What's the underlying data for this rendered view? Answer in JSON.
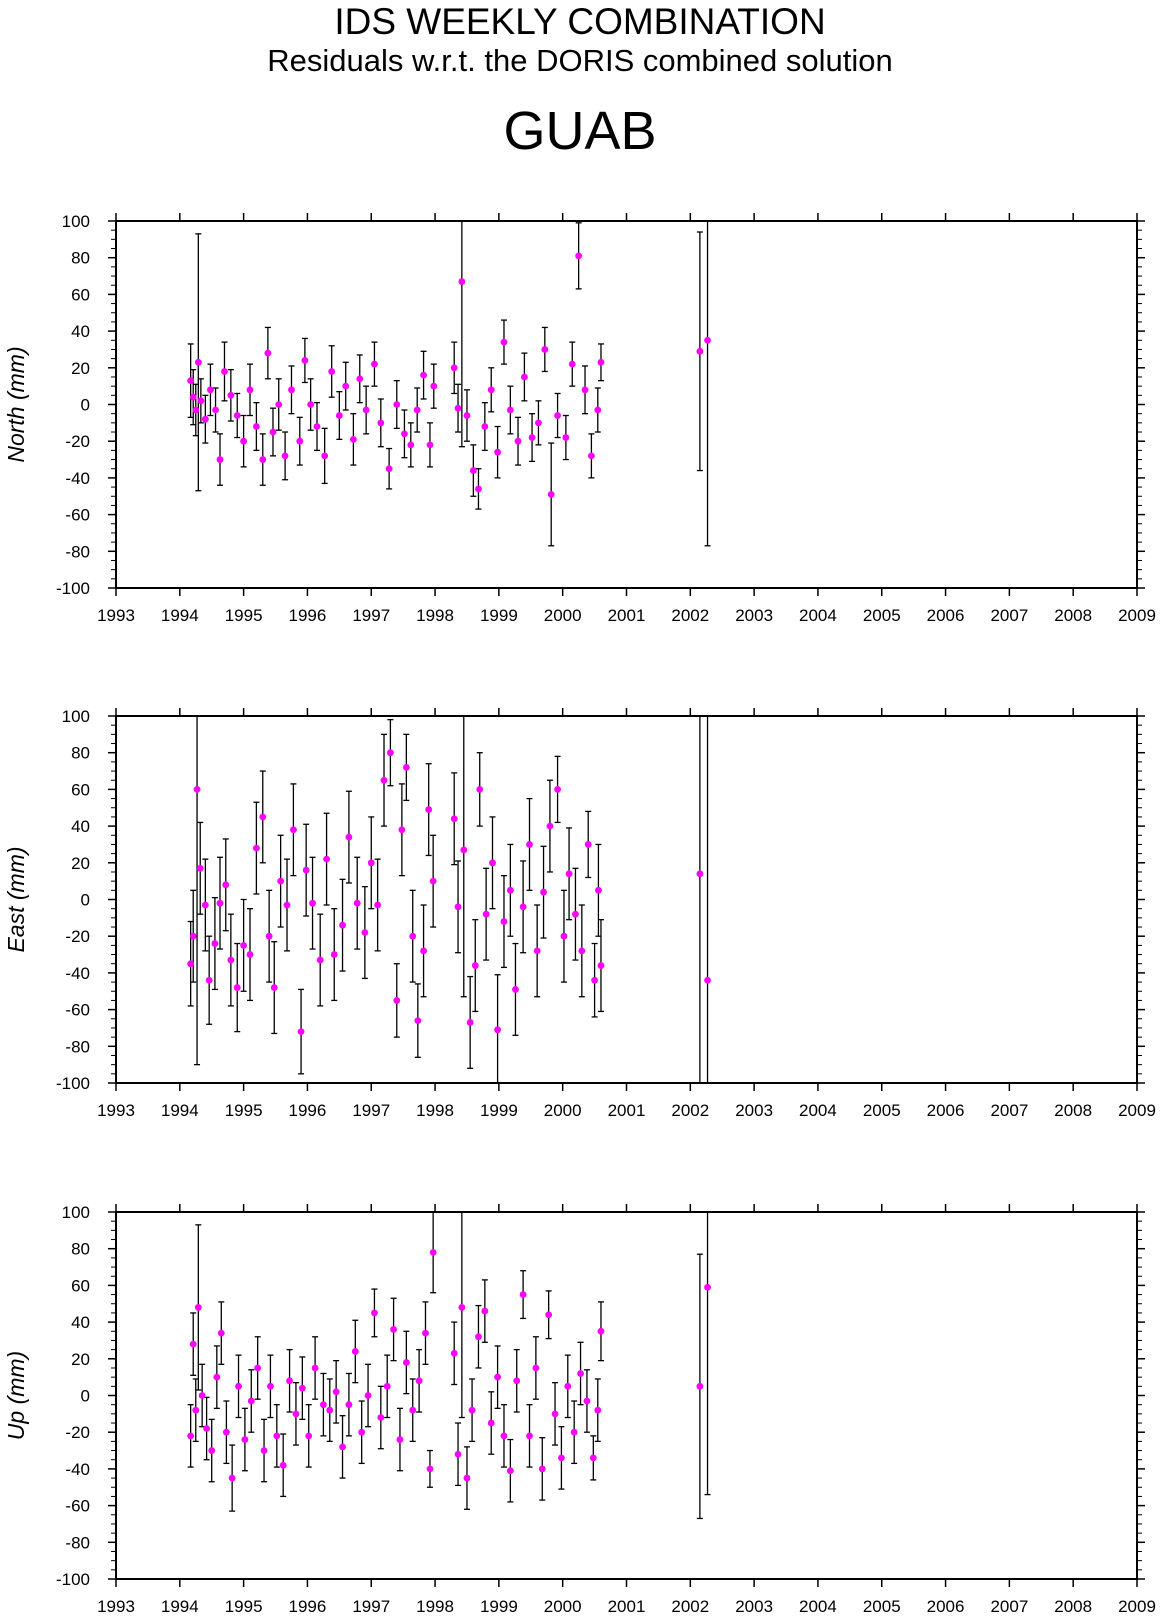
{
  "header": {
    "title": "IDS WEEKLY COMBINATION",
    "subtitle": "Residuals w.r.t. the DORIS combined solution",
    "station": "GUAB"
  },
  "colors": {
    "point": "#ff00ff",
    "errorbar": "#000000",
    "axis": "#000000"
  },
  "chart_data": [
    {
      "type": "scatter",
      "ylabel": "North (mm)",
      "xlim": [
        1993,
        2009
      ],
      "ylim": [
        -100,
        100
      ],
      "x_ticks": [
        "1993",
        "1994",
        "1995",
        "1996",
        "1997",
        "1998",
        "1999",
        "2000",
        "2001",
        "2002",
        "2003",
        "2004",
        "2005",
        "2006",
        "2007",
        "2008",
        "2009"
      ],
      "y_ticks": [
        "100",
        "80",
        "60",
        "40",
        "20",
        "0",
        "-20",
        "-40",
        "-60",
        "-80",
        "-100"
      ],
      "points": [
        {
          "x": 1994.17,
          "y": 13,
          "err": 20
        },
        {
          "x": 1994.21,
          "y": 4,
          "err": 15
        },
        {
          "x": 1994.25,
          "y": -3,
          "err": 14
        },
        {
          "x": 1994.29,
          "y": 23,
          "err": 70
        },
        {
          "x": 1994.33,
          "y": 2,
          "err": 12
        },
        {
          "x": 1994.4,
          "y": -8,
          "err": 13
        },
        {
          "x": 1994.48,
          "y": 8,
          "err": 14
        },
        {
          "x": 1994.56,
          "y": -3,
          "err": 12
        },
        {
          "x": 1994.63,
          "y": -30,
          "err": 14
        },
        {
          "x": 1994.7,
          "y": 18,
          "err": 16
        },
        {
          "x": 1994.8,
          "y": 5,
          "err": 14
        },
        {
          "x": 1994.9,
          "y": -6,
          "err": 12
        },
        {
          "x": 1995.0,
          "y": -20,
          "err": 14
        },
        {
          "x": 1995.1,
          "y": 8,
          "err": 14
        },
        {
          "x": 1995.2,
          "y": -12,
          "err": 13
        },
        {
          "x": 1995.3,
          "y": -30,
          "err": 14
        },
        {
          "x": 1995.38,
          "y": 28,
          "err": 14
        },
        {
          "x": 1995.46,
          "y": -15,
          "err": 13
        },
        {
          "x": 1995.55,
          "y": 0,
          "err": 14
        },
        {
          "x": 1995.65,
          "y": -28,
          "err": 13
        },
        {
          "x": 1995.75,
          "y": 8,
          "err": 13
        },
        {
          "x": 1995.88,
          "y": -20,
          "err": 13
        },
        {
          "x": 1995.96,
          "y": 24,
          "err": 12
        },
        {
          "x": 1996.05,
          "y": 0,
          "err": 14
        },
        {
          "x": 1996.15,
          "y": -12,
          "err": 13
        },
        {
          "x": 1996.27,
          "y": -28,
          "err": 15
        },
        {
          "x": 1996.38,
          "y": 18,
          "err": 14
        },
        {
          "x": 1996.5,
          "y": -6,
          "err": 13
        },
        {
          "x": 1996.6,
          "y": 10,
          "err": 13
        },
        {
          "x": 1996.72,
          "y": -19,
          "err": 14
        },
        {
          "x": 1996.82,
          "y": 14,
          "err": 13
        },
        {
          "x": 1996.92,
          "y": -3,
          "err": 13
        },
        {
          "x": 1997.05,
          "y": 22,
          "err": 12
        },
        {
          "x": 1997.15,
          "y": -10,
          "err": 13
        },
        {
          "x": 1997.28,
          "y": -35,
          "err": 11
        },
        {
          "x": 1997.4,
          "y": 0,
          "err": 13
        },
        {
          "x": 1997.52,
          "y": -16,
          "err": 13
        },
        {
          "x": 1997.62,
          "y": -22,
          "err": 12
        },
        {
          "x": 1997.72,
          "y": -3,
          "err": 12
        },
        {
          "x": 1997.82,
          "y": 16,
          "err": 13
        },
        {
          "x": 1997.92,
          "y": -22,
          "err": 12
        },
        {
          "x": 1997.98,
          "y": 10,
          "err": 12
        },
        {
          "x": 1998.3,
          "y": 20,
          "err": 14
        },
        {
          "x": 1998.36,
          "y": -2,
          "err": 13
        },
        {
          "x": 1998.42,
          "y": 67,
          "err": 90
        },
        {
          "x": 1998.5,
          "y": -6,
          "err": 14
        },
        {
          "x": 1998.6,
          "y": -36,
          "err": 14
        },
        {
          "x": 1998.68,
          "y": -46,
          "err": 11
        },
        {
          "x": 1998.78,
          "y": -12,
          "err": 13
        },
        {
          "x": 1998.88,
          "y": 8,
          "err": 12
        },
        {
          "x": 1998.98,
          "y": -26,
          "err": 14
        },
        {
          "x": 1999.08,
          "y": 34,
          "err": 12
        },
        {
          "x": 1999.18,
          "y": -3,
          "err": 13
        },
        {
          "x": 1999.3,
          "y": -20,
          "err": 13
        },
        {
          "x": 1999.4,
          "y": 15,
          "err": 13
        },
        {
          "x": 1999.52,
          "y": -18,
          "err": 13
        },
        {
          "x": 1999.62,
          "y": -10,
          "err": 12
        },
        {
          "x": 1999.72,
          "y": 30,
          "err": 12
        },
        {
          "x": 1999.82,
          "y": -49,
          "err": 28
        },
        {
          "x": 1999.92,
          "y": -6,
          "err": 12
        },
        {
          "x": 2000.05,
          "y": -18,
          "err": 12
        },
        {
          "x": 2000.15,
          "y": 22,
          "err": 12
        },
        {
          "x": 2000.25,
          "y": 81,
          "err": 18
        },
        {
          "x": 2000.35,
          "y": 8,
          "err": 13
        },
        {
          "x": 2000.45,
          "y": -28,
          "err": 12
        },
        {
          "x": 2000.55,
          "y": -3,
          "err": 12
        },
        {
          "x": 2000.6,
          "y": 23,
          "err": 10
        },
        {
          "x": 2002.15,
          "y": 29,
          "err": 65
        },
        {
          "x": 2002.27,
          "y": 35,
          "err": 112
        }
      ]
    },
    {
      "type": "scatter",
      "ylabel": "East (mm)",
      "xlim": [
        1993,
        2009
      ],
      "ylim": [
        -100,
        100
      ],
      "x_ticks": [
        "1993",
        "1994",
        "1995",
        "1996",
        "1997",
        "1998",
        "1999",
        "2000",
        "2001",
        "2002",
        "2003",
        "2004",
        "2005",
        "2006",
        "2007",
        "2008",
        "2009"
      ],
      "y_ticks": [
        "100",
        "80",
        "60",
        "40",
        "20",
        "0",
        "-20",
        "-40",
        "-60",
        "-80",
        "-100"
      ],
      "points": [
        {
          "x": 1994.17,
          "y": -35,
          "err": 23
        },
        {
          "x": 1994.21,
          "y": -20,
          "err": 25
        },
        {
          "x": 1994.27,
          "y": 60,
          "err": 150
        },
        {
          "x": 1994.32,
          "y": 17,
          "err": 25
        },
        {
          "x": 1994.4,
          "y": -3,
          "err": 25
        },
        {
          "x": 1994.46,
          "y": -44,
          "err": 24
        },
        {
          "x": 1994.55,
          "y": -24,
          "err": 25
        },
        {
          "x": 1994.63,
          "y": -2,
          "err": 25
        },
        {
          "x": 1994.72,
          "y": 8,
          "err": 25
        },
        {
          "x": 1994.8,
          "y": -33,
          "err": 25
        },
        {
          "x": 1994.9,
          "y": -48,
          "err": 24
        },
        {
          "x": 1995.0,
          "y": -25,
          "err": 25
        },
        {
          "x": 1995.1,
          "y": -30,
          "err": 25
        },
        {
          "x": 1995.2,
          "y": 28,
          "err": 25
        },
        {
          "x": 1995.3,
          "y": 45,
          "err": 25
        },
        {
          "x": 1995.4,
          "y": -20,
          "err": 25
        },
        {
          "x": 1995.48,
          "y": -48,
          "err": 25
        },
        {
          "x": 1995.58,
          "y": 10,
          "err": 25
        },
        {
          "x": 1995.68,
          "y": -3,
          "err": 25
        },
        {
          "x": 1995.78,
          "y": 38,
          "err": 25
        },
        {
          "x": 1995.9,
          "y": -72,
          "err": 23
        },
        {
          "x": 1995.98,
          "y": 16,
          "err": 25
        },
        {
          "x": 1996.08,
          "y": -2,
          "err": 25
        },
        {
          "x": 1996.2,
          "y": -33,
          "err": 25
        },
        {
          "x": 1996.3,
          "y": 22,
          "err": 25
        },
        {
          "x": 1996.42,
          "y": -30,
          "err": 25
        },
        {
          "x": 1996.55,
          "y": -14,
          "err": 25
        },
        {
          "x": 1996.65,
          "y": 34,
          "err": 25
        },
        {
          "x": 1996.78,
          "y": -2,
          "err": 25
        },
        {
          "x": 1996.9,
          "y": -18,
          "err": 25
        },
        {
          "x": 1997.0,
          "y": 20,
          "err": 25
        },
        {
          "x": 1997.1,
          "y": -3,
          "err": 25
        },
        {
          "x": 1997.2,
          "y": 65,
          "err": 25
        },
        {
          "x": 1997.3,
          "y": 80,
          "err": 18
        },
        {
          "x": 1997.4,
          "y": -55,
          "err": 20
        },
        {
          "x": 1997.48,
          "y": 38,
          "err": 25
        },
        {
          "x": 1997.55,
          "y": 72,
          "err": 18
        },
        {
          "x": 1997.65,
          "y": -20,
          "err": 25
        },
        {
          "x": 1997.73,
          "y": -66,
          "err": 20
        },
        {
          "x": 1997.82,
          "y": -28,
          "err": 25
        },
        {
          "x": 1997.9,
          "y": 49,
          "err": 25
        },
        {
          "x": 1997.97,
          "y": 10,
          "err": 25
        },
        {
          "x": 1998.3,
          "y": 44,
          "err": 25
        },
        {
          "x": 1998.36,
          "y": -4,
          "err": 25
        },
        {
          "x": 1998.45,
          "y": 27,
          "err": 80
        },
        {
          "x": 1998.55,
          "y": -67,
          "err": 25
        },
        {
          "x": 1998.63,
          "y": -36,
          "err": 25
        },
        {
          "x": 1998.7,
          "y": 60,
          "err": 20
        },
        {
          "x": 1998.8,
          "y": -8,
          "err": 25
        },
        {
          "x": 1998.9,
          "y": 20,
          "err": 25
        },
        {
          "x": 1998.98,
          "y": -71,
          "err": 30
        },
        {
          "x": 1999.08,
          "y": -12,
          "err": 25
        },
        {
          "x": 1999.18,
          "y": 5,
          "err": 25
        },
        {
          "x": 1999.26,
          "y": -49,
          "err": 25
        },
        {
          "x": 1999.38,
          "y": -4,
          "err": 25
        },
        {
          "x": 1999.48,
          "y": 30,
          "err": 25
        },
        {
          "x": 1999.6,
          "y": -28,
          "err": 25
        },
        {
          "x": 1999.7,
          "y": 4,
          "err": 25
        },
        {
          "x": 1999.8,
          "y": 40,
          "err": 25
        },
        {
          "x": 1999.92,
          "y": 60,
          "err": 18
        },
        {
          "x": 2000.02,
          "y": -20,
          "err": 25
        },
        {
          "x": 2000.1,
          "y": 14,
          "err": 25
        },
        {
          "x": 2000.2,
          "y": -8,
          "err": 25
        },
        {
          "x": 2000.3,
          "y": -28,
          "err": 25
        },
        {
          "x": 2000.4,
          "y": 30,
          "err": 18
        },
        {
          "x": 2000.5,
          "y": -44,
          "err": 20
        },
        {
          "x": 2000.56,
          "y": 5,
          "err": 25
        },
        {
          "x": 2000.6,
          "y": -36,
          "err": 25
        },
        {
          "x": 2002.15,
          "y": 14,
          "err": 150
        },
        {
          "x": 2002.27,
          "y": -44,
          "err": 150
        }
      ]
    },
    {
      "type": "scatter",
      "ylabel": "Up (mm)",
      "xlim": [
        1993,
        2009
      ],
      "ylim": [
        -100,
        100
      ],
      "x_ticks": [
        "1993",
        "1994",
        "1995",
        "1996",
        "1997",
        "1998",
        "1999",
        "2000",
        "2001",
        "2002",
        "2003",
        "2004",
        "2005",
        "2006",
        "2007",
        "2008",
        "2009"
      ],
      "y_ticks": [
        "100",
        "80",
        "60",
        "40",
        "20",
        "0",
        "-20",
        "-40",
        "-60",
        "-80",
        "-100"
      ],
      "points": [
        {
          "x": 1994.17,
          "y": -22,
          "err": 17
        },
        {
          "x": 1994.21,
          "y": 28,
          "err": 17
        },
        {
          "x": 1994.25,
          "y": -8,
          "err": 17
        },
        {
          "x": 1994.29,
          "y": 48,
          "err": 45
        },
        {
          "x": 1994.35,
          "y": 0,
          "err": 17
        },
        {
          "x": 1994.42,
          "y": -18,
          "err": 17
        },
        {
          "x": 1994.5,
          "y": -30,
          "err": 17
        },
        {
          "x": 1994.58,
          "y": 10,
          "err": 17
        },
        {
          "x": 1994.65,
          "y": 34,
          "err": 17
        },
        {
          "x": 1994.73,
          "y": -20,
          "err": 17
        },
        {
          "x": 1994.82,
          "y": -45,
          "err": 18
        },
        {
          "x": 1994.92,
          "y": 5,
          "err": 17
        },
        {
          "x": 1995.02,
          "y": -24,
          "err": 17
        },
        {
          "x": 1995.12,
          "y": -3,
          "err": 17
        },
        {
          "x": 1995.22,
          "y": 15,
          "err": 17
        },
        {
          "x": 1995.32,
          "y": -30,
          "err": 17
        },
        {
          "x": 1995.42,
          "y": 5,
          "err": 17
        },
        {
          "x": 1995.52,
          "y": -22,
          "err": 17
        },
        {
          "x": 1995.62,
          "y": -38,
          "err": 17
        },
        {
          "x": 1995.72,
          "y": 8,
          "err": 17
        },
        {
          "x": 1995.82,
          "y": -10,
          "err": 17
        },
        {
          "x": 1995.92,
          "y": 4,
          "err": 17
        },
        {
          "x": 1996.02,
          "y": -22,
          "err": 17
        },
        {
          "x": 1996.12,
          "y": 15,
          "err": 17
        },
        {
          "x": 1996.25,
          "y": -5,
          "err": 17
        },
        {
          "x": 1996.35,
          "y": -8,
          "err": 17
        },
        {
          "x": 1996.45,
          "y": 2,
          "err": 17
        },
        {
          "x": 1996.55,
          "y": -28,
          "err": 17
        },
        {
          "x": 1996.65,
          "y": -5,
          "err": 17
        },
        {
          "x": 1996.75,
          "y": 24,
          "err": 17
        },
        {
          "x": 1996.85,
          "y": -20,
          "err": 17
        },
        {
          "x": 1996.95,
          "y": 0,
          "err": 17
        },
        {
          "x": 1997.05,
          "y": 45,
          "err": 13
        },
        {
          "x": 1997.15,
          "y": -12,
          "err": 17
        },
        {
          "x": 1997.25,
          "y": 5,
          "err": 17
        },
        {
          "x": 1997.35,
          "y": 36,
          "err": 17
        },
        {
          "x": 1997.45,
          "y": -24,
          "err": 17
        },
        {
          "x": 1997.55,
          "y": 18,
          "err": 17
        },
        {
          "x": 1997.65,
          "y": -8,
          "err": 17
        },
        {
          "x": 1997.75,
          "y": 8,
          "err": 17
        },
        {
          "x": 1997.85,
          "y": 34,
          "err": 17
        },
        {
          "x": 1997.92,
          "y": -40,
          "err": 10
        },
        {
          "x": 1997.97,
          "y": 78,
          "err": 22
        },
        {
          "x": 1998.3,
          "y": 23,
          "err": 17
        },
        {
          "x": 1998.36,
          "y": -32,
          "err": 17
        },
        {
          "x": 1998.42,
          "y": 48,
          "err": 60
        },
        {
          "x": 1998.5,
          "y": -45,
          "err": 17
        },
        {
          "x": 1998.58,
          "y": -8,
          "err": 17
        },
        {
          "x": 1998.68,
          "y": 32,
          "err": 17
        },
        {
          "x": 1998.78,
          "y": 46,
          "err": 17
        },
        {
          "x": 1998.88,
          "y": -15,
          "err": 17
        },
        {
          "x": 1998.98,
          "y": 10,
          "err": 17
        },
        {
          "x": 1999.08,
          "y": -22,
          "err": 17
        },
        {
          "x": 1999.18,
          "y": -41,
          "err": 17
        },
        {
          "x": 1999.28,
          "y": 8,
          "err": 17
        },
        {
          "x": 1999.38,
          "y": 55,
          "err": 13
        },
        {
          "x": 1999.48,
          "y": -22,
          "err": 17
        },
        {
          "x": 1999.58,
          "y": 15,
          "err": 17
        },
        {
          "x": 1999.68,
          "y": -40,
          "err": 17
        },
        {
          "x": 1999.78,
          "y": 44,
          "err": 13
        },
        {
          "x": 1999.88,
          "y": -10,
          "err": 17
        },
        {
          "x": 1999.98,
          "y": -34,
          "err": 17
        },
        {
          "x": 2000.08,
          "y": 5,
          "err": 17
        },
        {
          "x": 2000.18,
          "y": -20,
          "err": 17
        },
        {
          "x": 2000.28,
          "y": 12,
          "err": 17
        },
        {
          "x": 2000.38,
          "y": -3,
          "err": 17
        },
        {
          "x": 2000.48,
          "y": -34,
          "err": 12
        },
        {
          "x": 2000.55,
          "y": -8,
          "err": 17
        },
        {
          "x": 2000.6,
          "y": 35,
          "err": 16
        },
        {
          "x": 2002.15,
          "y": 5,
          "err": 72
        },
        {
          "x": 2002.27,
          "y": 59,
          "err": 113
        }
      ]
    }
  ]
}
